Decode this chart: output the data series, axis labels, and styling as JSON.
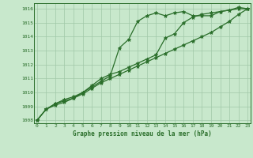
{
  "title": "Graphe pression niveau de la mer (hPa)",
  "xlabel_ticks": [
    0,
    1,
    2,
    3,
    4,
    5,
    6,
    7,
    8,
    9,
    10,
    11,
    12,
    13,
    14,
    15,
    16,
    17,
    18,
    19,
    20,
    21,
    22,
    23
  ],
  "ylim": [
    1007.8,
    1016.4
  ],
  "xlim": [
    -0.3,
    23.3
  ],
  "yticks": [
    1008,
    1009,
    1010,
    1011,
    1012,
    1013,
    1014,
    1015,
    1016
  ],
  "bg_color": "#c8e8cc",
  "grid_color": "#a0c8a8",
  "line_color": "#2a6e2a",
  "line1": [
    1008.0,
    1008.8,
    1009.2,
    1009.4,
    1009.6,
    1010.0,
    1010.4,
    1010.8,
    1011.2,
    1013.2,
    1013.8,
    1015.1,
    1015.5,
    1015.7,
    1015.5,
    1015.7,
    1015.8,
    1015.5,
    1015.5,
    1015.5,
    1015.8,
    1015.9,
    1016.1,
    1016.0
  ],
  "line2": [
    1008.0,
    1008.8,
    1009.2,
    1009.5,
    1009.7,
    1010.0,
    1010.5,
    1011.0,
    1011.3,
    1011.5,
    1011.8,
    1012.1,
    1012.4,
    1012.7,
    1013.9,
    1014.2,
    1015.0,
    1015.4,
    1015.6,
    1015.7,
    1015.8,
    1015.9,
    1016.0,
    1016.0
  ],
  "line3": [
    1008.0,
    1008.8,
    1009.1,
    1009.3,
    1009.6,
    1009.9,
    1010.3,
    1010.7,
    1011.0,
    1011.3,
    1011.6,
    1011.9,
    1012.2,
    1012.5,
    1012.8,
    1013.1,
    1013.4,
    1013.7,
    1014.0,
    1014.3,
    1014.7,
    1015.1,
    1015.6,
    1016.0
  ],
  "marker": "*",
  "markersize": 3.5,
  "linewidth": 0.9
}
